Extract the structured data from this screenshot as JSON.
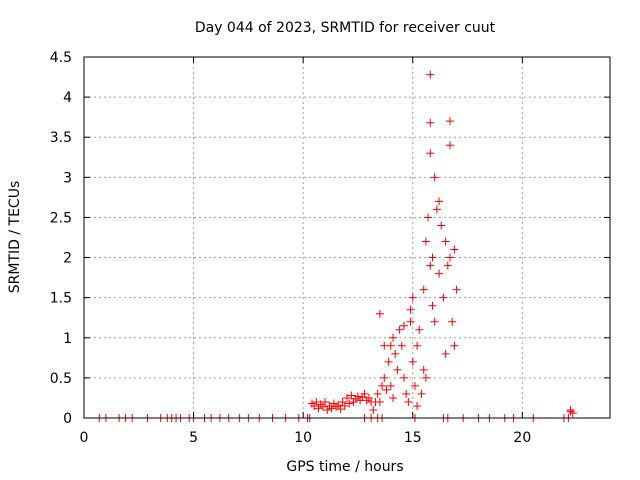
{
  "chart_data": {
    "type": "scatter",
    "title": "Day 044 of 2023, SRMTID for receiver cuut",
    "xlabel": "GPS time / hours",
    "ylabel": "SRMTID / TECUs",
    "xlim": [
      0,
      24
    ],
    "ylim": [
      0,
      4.5
    ],
    "x_ticks": [
      0,
      5,
      10,
      15,
      20
    ],
    "x_tick_labels": [
      "0",
      "5",
      "10",
      "15",
      "20"
    ],
    "y_ticks": [
      0,
      0.5,
      1,
      1.5,
      2,
      2.5,
      3,
      3.5,
      4,
      4.5
    ],
    "y_tick_labels": [
      "0",
      "0.5",
      "1",
      "1.5",
      "2",
      "2.5",
      "3",
      "3.5",
      "4",
      "4.5"
    ],
    "grid": true,
    "marker": "plus",
    "series": [
      {
        "name": "SRMTID",
        "color": "#ff0000",
        "points": [
          [
            0.7,
            0
          ],
          [
            1.0,
            0
          ],
          [
            1.6,
            0
          ],
          [
            1.9,
            0
          ],
          [
            2.2,
            0
          ],
          [
            2.9,
            0
          ],
          [
            3.5,
            0
          ],
          [
            3.8,
            0
          ],
          [
            4.0,
            0
          ],
          [
            4.2,
            0
          ],
          [
            4.4,
            0
          ],
          [
            4.8,
            0
          ],
          [
            5.0,
            0
          ],
          [
            5.5,
            0
          ],
          [
            5.8,
            0
          ],
          [
            6.2,
            0
          ],
          [
            6.6,
            0
          ],
          [
            7.1,
            0
          ],
          [
            7.5,
            0
          ],
          [
            8.0,
            0
          ],
          [
            8.6,
            0
          ],
          [
            9.2,
            0
          ],
          [
            9.8,
            0
          ],
          [
            10.2,
            0
          ],
          [
            10.3,
            0
          ],
          [
            12.8,
            0
          ],
          [
            13.1,
            0
          ],
          [
            13.4,
            0
          ],
          [
            13.6,
            0
          ],
          [
            15.1,
            0
          ],
          [
            16.4,
            0
          ],
          [
            16.6,
            0
          ],
          [
            17.3,
            0
          ],
          [
            18.0,
            0
          ],
          [
            18.5,
            0
          ],
          [
            19.2,
            0
          ],
          [
            19.6,
            0
          ],
          [
            20.5,
            0
          ],
          [
            21.9,
            0
          ],
          [
            22.1,
            0
          ],
          [
            10.4,
            0.18
          ],
          [
            10.5,
            0.15
          ],
          [
            10.6,
            0.2
          ],
          [
            10.7,
            0.12
          ],
          [
            10.8,
            0.17
          ],
          [
            10.9,
            0.14
          ],
          [
            11.0,
            0.2
          ],
          [
            11.1,
            0.1
          ],
          [
            11.2,
            0.15
          ],
          [
            11.3,
            0.12
          ],
          [
            11.4,
            0.18
          ],
          [
            11.5,
            0.14
          ],
          [
            11.6,
            0.16
          ],
          [
            11.7,
            0.11
          ],
          [
            11.8,
            0.2
          ],
          [
            11.9,
            0.15
          ],
          [
            12.0,
            0.25
          ],
          [
            12.1,
            0.18
          ],
          [
            12.2,
            0.28
          ],
          [
            12.3,
            0.2
          ],
          [
            12.4,
            0.24
          ],
          [
            12.5,
            0.27
          ],
          [
            12.6,
            0.22
          ],
          [
            12.7,
            0.26
          ],
          [
            12.8,
            0.3
          ],
          [
            12.9,
            0.22
          ],
          [
            13.0,
            0.25
          ],
          [
            13.1,
            0.2
          ],
          [
            13.2,
            0.1
          ],
          [
            13.3,
            0.2
          ],
          [
            13.4,
            0.3
          ],
          [
            13.5,
            0.2
          ],
          [
            13.6,
            0.4
          ],
          [
            13.7,
            0.5
          ],
          [
            13.8,
            0.35
          ],
          [
            13.9,
            0.7
          ],
          [
            14.0,
            0.9
          ],
          [
            14.0,
            0.4
          ],
          [
            14.1,
            1.0
          ],
          [
            14.2,
            0.8
          ],
          [
            14.3,
            0.6
          ],
          [
            14.4,
            1.1
          ],
          [
            14.5,
            0.9
          ],
          [
            14.6,
            0.5
          ],
          [
            14.7,
            0.3
          ],
          [
            14.8,
            0.2
          ],
          [
            14.9,
            1.2
          ],
          [
            15.0,
            0.7
          ],
          [
            15.0,
            1.5
          ],
          [
            15.1,
            0.4
          ],
          [
            15.2,
            0.9
          ],
          [
            15.3,
            1.1
          ],
          [
            15.4,
            0.3
          ],
          [
            15.5,
            0.6
          ],
          [
            15.5,
            1.6
          ],
          [
            15.6,
            2.2
          ],
          [
            15.7,
            2.5
          ],
          [
            15.8,
            3.3
          ],
          [
            15.8,
            1.9
          ],
          [
            15.9,
            2.0
          ],
          [
            16.0,
            3.0
          ],
          [
            16.0,
            1.2
          ],
          [
            16.1,
            2.6
          ],
          [
            16.2,
            1.8
          ],
          [
            16.3,
            2.4
          ],
          [
            16.4,
            1.5
          ],
          [
            16.5,
            2.2
          ],
          [
            16.6,
            1.9
          ],
          [
            16.7,
            2.0
          ],
          [
            16.8,
            1.2
          ],
          [
            16.9,
            2.1
          ],
          [
            17.0,
            1.6
          ],
          [
            16.7,
            3.4
          ],
          [
            16.7,
            3.7
          ],
          [
            15.8,
            4.28
          ],
          [
            15.8,
            3.68
          ],
          [
            16.2,
            2.7
          ],
          [
            14.9,
            1.35
          ],
          [
            15.9,
            1.4
          ],
          [
            16.5,
            0.8
          ],
          [
            16.9,
            0.9
          ],
          [
            15.2,
            0.15
          ],
          [
            14.1,
            0.25
          ],
          [
            15.6,
            0.5
          ],
          [
            13.5,
            1.3
          ],
          [
            13.7,
            0.9
          ],
          [
            14.6,
            1.15
          ],
          [
            22.2,
            0.08
          ],
          [
            22.3,
            0.06
          ],
          [
            22.2,
            0.1
          ]
        ]
      }
    ]
  }
}
